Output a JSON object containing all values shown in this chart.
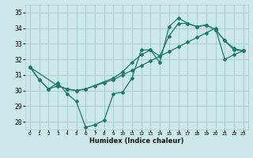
{
  "xlabel": "Humidex (Indice chaleur)",
  "xlim": [
    -0.5,
    23.5
  ],
  "ylim": [
    27.5,
    35.5
  ],
  "yticks": [
    28,
    29,
    30,
    31,
    32,
    33,
    34,
    35
  ],
  "xticks": [
    0,
    1,
    2,
    3,
    4,
    5,
    6,
    7,
    8,
    9,
    10,
    11,
    12,
    13,
    14,
    15,
    16,
    17,
    18,
    19,
    20,
    21,
    22,
    23
  ],
  "background_color": "#cce8e8",
  "grid_color": "#aacccc",
  "line_color": "#1a7a6e",
  "line1_x": [
    0,
    1,
    2,
    3,
    4,
    5,
    6,
    7,
    8,
    9,
    10,
    11,
    12,
    13,
    14,
    15,
    16,
    17,
    18,
    19,
    20,
    21,
    22,
    23
  ],
  "line1_y": [
    31.5,
    30.7,
    30.1,
    30.5,
    29.8,
    29.3,
    27.65,
    27.8,
    28.1,
    29.8,
    29.9,
    30.8,
    32.6,
    32.6,
    31.8,
    34.1,
    34.65,
    34.3,
    34.1,
    34.2,
    33.9,
    33.2,
    32.6,
    32.55
  ],
  "line2_x": [
    0,
    1,
    2,
    3,
    4,
    5,
    6,
    7,
    8,
    9,
    10,
    11,
    12,
    13,
    14,
    15,
    16,
    17,
    18,
    19,
    20,
    21,
    22,
    23
  ],
  "line2_y": [
    31.5,
    30.7,
    30.1,
    30.3,
    30.1,
    30.0,
    30.1,
    30.3,
    30.5,
    30.7,
    31.0,
    31.3,
    31.6,
    31.9,
    32.2,
    32.5,
    32.8,
    33.1,
    33.4,
    33.7,
    34.0,
    32.0,
    32.3,
    32.55
  ],
  "line3_x": [
    0,
    3,
    4,
    5,
    6,
    9,
    10,
    11,
    12,
    13,
    14,
    15,
    16,
    17,
    18,
    19,
    20,
    21,
    22,
    23
  ],
  "line3_y": [
    31.5,
    30.3,
    30.1,
    30.0,
    30.1,
    30.8,
    31.2,
    31.8,
    32.3,
    32.6,
    32.2,
    33.5,
    34.3,
    34.3,
    34.1,
    34.2,
    33.9,
    33.2,
    32.7,
    32.55
  ]
}
